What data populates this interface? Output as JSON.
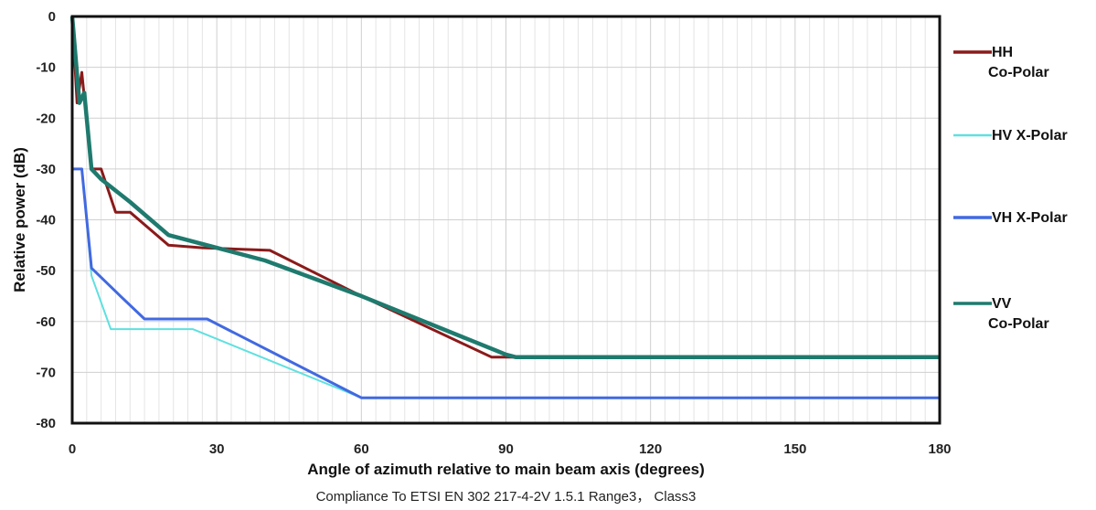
{
  "chart_data": {
    "type": "line",
    "xlabel": "Angle of azimuth relative to main beam axis (degrees)",
    "ylabel": "Relative power (dB)",
    "caption": "Compliance To ETSI EN 302 217-4-2V 1.5.1 Range3， Class3",
    "xlim": [
      0,
      180
    ],
    "ylim": [
      -80,
      0
    ],
    "x_ticks": [
      0,
      30,
      60,
      90,
      120,
      150,
      180
    ],
    "y_ticks": [
      0,
      -10,
      -20,
      -30,
      -40,
      -50,
      -60,
      -70,
      -80
    ],
    "grid": true,
    "legend_position": "right",
    "series": [
      {
        "name": "HH Co-Polar",
        "legend_lines": [
          "HH",
          "Co-Polar"
        ],
        "color": "#8b1a1a",
        "x": [
          0,
          1,
          2,
          4,
          6,
          9,
          12,
          20,
          27,
          41,
          60,
          87,
          92,
          180
        ],
        "y": [
          0,
          -17,
          -11,
          -30,
          -30,
          -38.5,
          -38.5,
          -45,
          -45.5,
          -46,
          -55,
          -67,
          -67,
          -67
        ]
      },
      {
        "name": "HV X-Polar",
        "legend_lines": [
          "HV X-Polar"
        ],
        "color": "#5fe0e0",
        "x": [
          0,
          2,
          4,
          8,
          25,
          60,
          180
        ],
        "y": [
          -30,
          -30,
          -51,
          -61.5,
          -61.5,
          -75,
          -75
        ]
      },
      {
        "name": "VH X-Polar",
        "legend_lines": [
          "VH X-Polar"
        ],
        "color": "#4169e1",
        "x": [
          0,
          2,
          4,
          10,
          15,
          28,
          60,
          180
        ],
        "y": [
          -30,
          -30,
          -49.5,
          -55,
          -59.5,
          -59.5,
          -75,
          -75
        ]
      },
      {
        "name": "VV Co-Polar",
        "legend_lines": [
          "VV",
          "Co-Polar"
        ],
        "color": "#1f7a6e",
        "x": [
          0,
          1.5,
          2.5,
          4,
          6,
          12,
          20,
          28,
          40,
          60,
          90,
          92,
          180
        ],
        "y": [
          0,
          -17,
          -15,
          -30,
          -32,
          -36.5,
          -43,
          -45,
          -48,
          -55,
          -66.5,
          -67,
          -67
        ]
      }
    ]
  }
}
